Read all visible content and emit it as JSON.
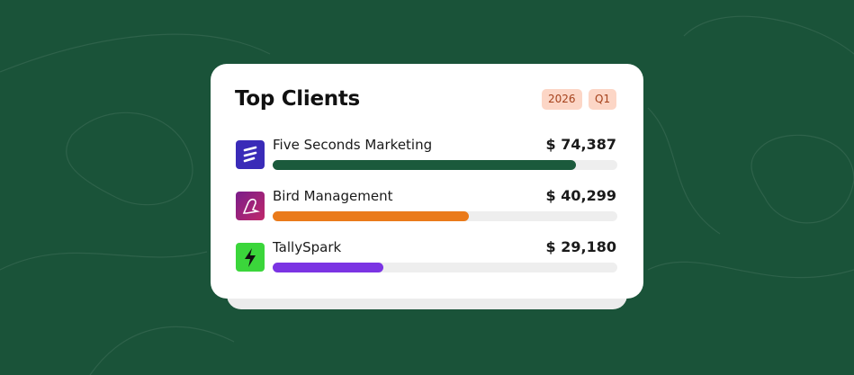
{
  "card": {
    "title": "Top Clients",
    "badges": [
      "2026",
      "Q1"
    ],
    "progress_range": [
      0,
      100
    ],
    "clients": [
      {
        "name": "Five Seconds Marketing",
        "amount": "$ 74,387",
        "progress": 88,
        "color": "#1b5a3c"
      },
      {
        "name": "Bird Management",
        "amount": "$ 40,299",
        "progress": 57,
        "color": "#ea7a1a"
      },
      {
        "name": "TallySpark",
        "amount": "$ 29,180",
        "progress": 32,
        "color": "#7b34e3"
      }
    ]
  }
}
